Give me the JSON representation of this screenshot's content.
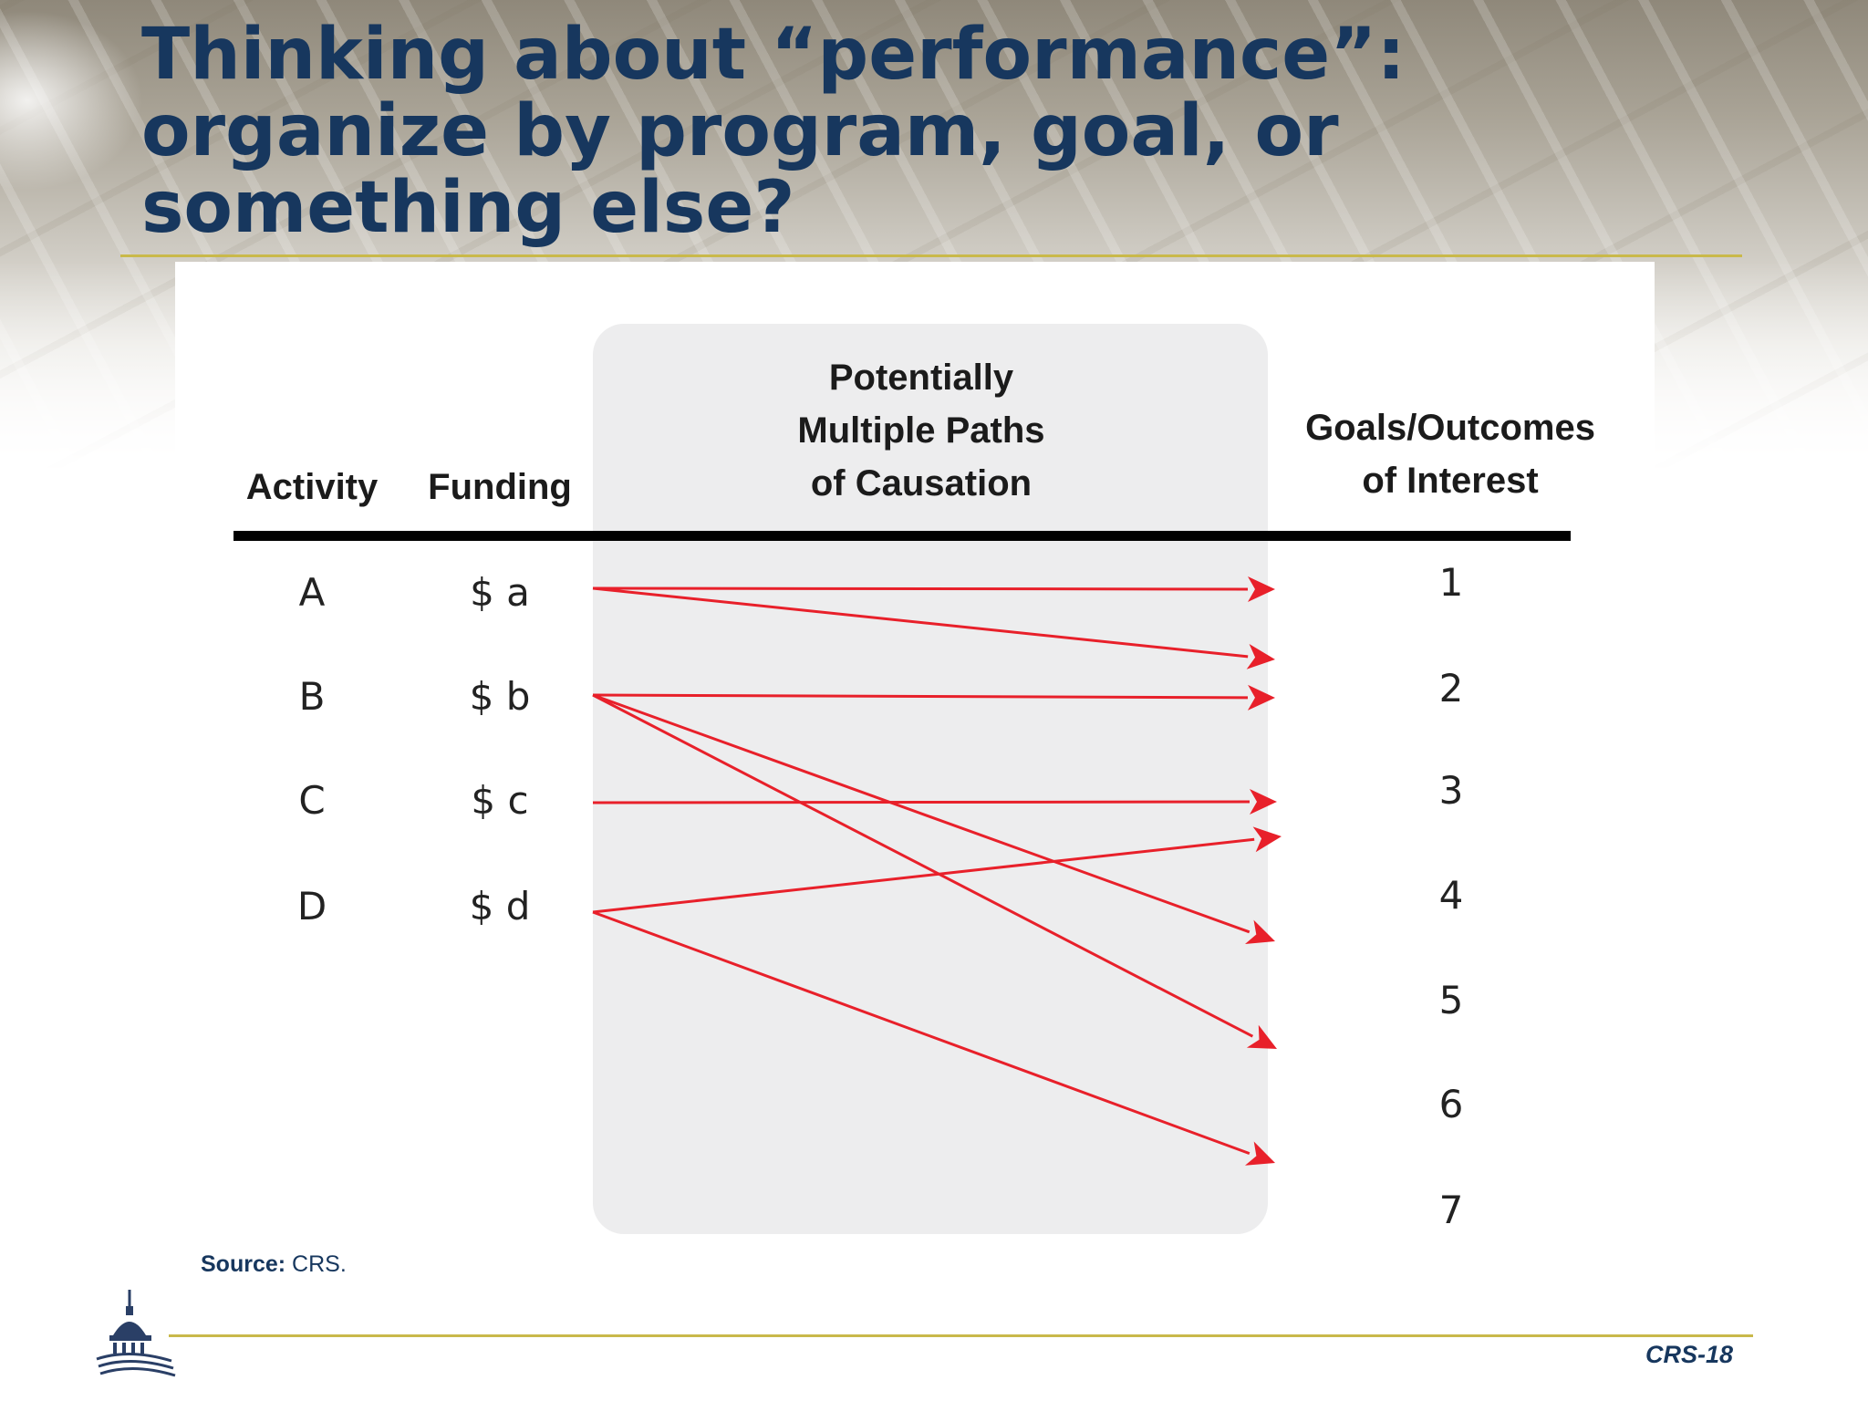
{
  "slide": {
    "title": "Thinking about “performance”:\norganize by program, goal, or\nsomething else?",
    "page_number": "CRS-18",
    "source_label": "Source:",
    "source_text": " CRS."
  },
  "diagram": {
    "headers": {
      "activity": "Activity",
      "funding": "Funding",
      "paths": "Potentially\nMultiple Paths\nof Causation",
      "goals": "Goals/Outcomes\nof Interest"
    },
    "rows": [
      {
        "activity": "A",
        "funding": "$ a"
      },
      {
        "activity": "B",
        "funding": "$ b"
      },
      {
        "activity": "C",
        "funding": "$ c"
      },
      {
        "activity": "D",
        "funding": "$ d"
      }
    ],
    "goals": [
      "1",
      "2",
      "3",
      "4",
      "5",
      "6",
      "7"
    ],
    "connections": [
      {
        "from": "A",
        "to": "1"
      },
      {
        "from": "A",
        "to": "2"
      },
      {
        "from": "B",
        "to": "2"
      },
      {
        "from": "B",
        "to": "4"
      },
      {
        "from": "B",
        "to": "5"
      },
      {
        "from": "C",
        "to": "3"
      },
      {
        "from": "D",
        "to": "3"
      },
      {
        "from": "D",
        "to": "6"
      }
    ],
    "arrow_color": "#e8202a"
  }
}
